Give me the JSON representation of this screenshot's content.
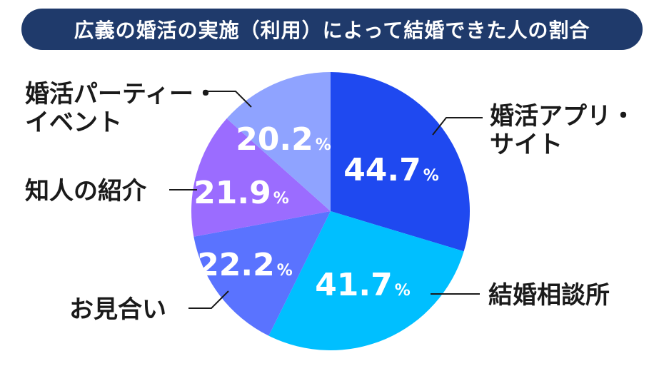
{
  "title": "広義の婚活の実施（利用）によって結婚できた人の割合",
  "chart_data": {
    "type": "pie",
    "unit": "%",
    "slices": [
      {
        "label": "婚活アプリ・サイト",
        "label_lines": [
          "婚活アプリ・",
          "サイト"
        ],
        "value": 44.7,
        "color": "#1f49f0"
      },
      {
        "label": "結婚相談所",
        "label_lines": [
          "結婚相談所"
        ],
        "value": 41.7,
        "color": "#00bfff"
      },
      {
        "label": "お見合い",
        "label_lines": [
          "お見合い"
        ],
        "value": 22.2,
        "color": "#5a73ff"
      },
      {
        "label": "知人の紹介",
        "label_lines": [
          "知人の紹介"
        ],
        "value": 21.9,
        "color": "#9b6cff"
      },
      {
        "label": "婚活パーティー・イベント",
        "label_lines": [
          "婚活パーティー・",
          "イベント"
        ],
        "value": 20.2,
        "color": "#8fa3ff"
      }
    ]
  }
}
